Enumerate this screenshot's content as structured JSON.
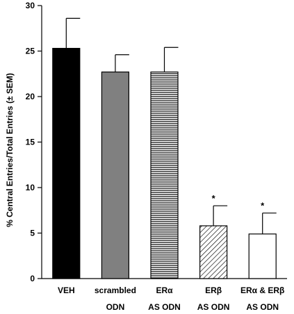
{
  "chart_data": {
    "type": "bar",
    "title": "",
    "xlabel": "",
    "ylabel": "% Central Entries/Total Entries (± SEM)",
    "ylim": [
      0,
      30
    ],
    "yticks": [
      0,
      5,
      10,
      15,
      20,
      25,
      30
    ],
    "grid": false,
    "categories": [
      {
        "line1": "VEH",
        "line2": ""
      },
      {
        "line1": "scrambled",
        "line2": "ODN"
      },
      {
        "line1": "ERα",
        "line2": "AS ODN"
      },
      {
        "line1": "ERβ",
        "line2": "AS ODN"
      },
      {
        "line1": "ERα & ERβ",
        "line2": "AS ODN"
      }
    ],
    "values": [
      25.3,
      22.7,
      22.7,
      5.8,
      4.9
    ],
    "errors": [
      3.3,
      1.9,
      2.7,
      2.2,
      2.3
    ],
    "fills": [
      "solid-black",
      "solid-gray",
      "horizontal-lines",
      "diagonal-hatch",
      "white"
    ],
    "colors": {
      "black": "#000000",
      "gray": "#808080",
      "white": "#ffffff"
    },
    "significance": [
      "",
      "",
      "",
      "*",
      "*"
    ]
  }
}
